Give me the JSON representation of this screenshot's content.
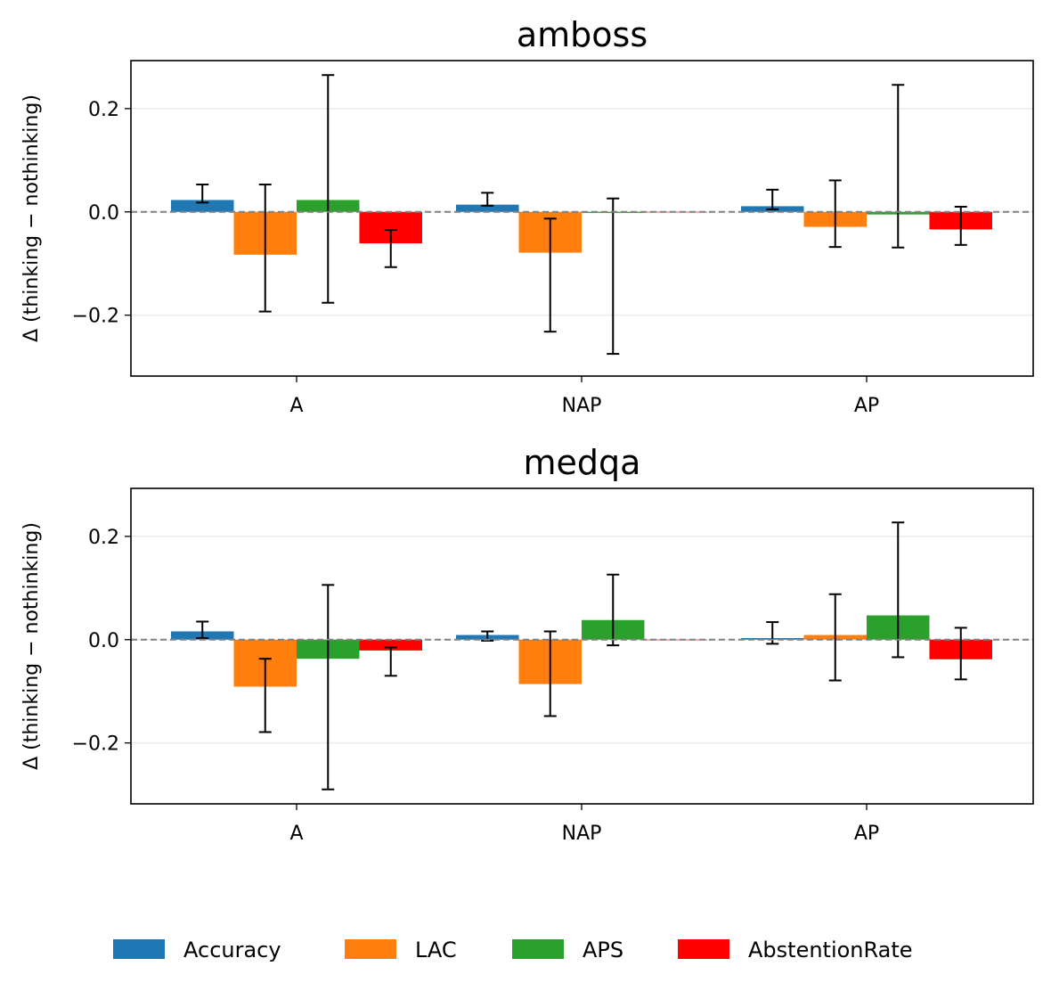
{
  "chart_data": [
    {
      "type": "bar",
      "title": "amboss",
      "xlabel": "",
      "ylabel": "Δ (thinking − nothinking)",
      "ylim": [
        -0.318,
        0.293
      ],
      "yticks": [
        -0.2,
        0.0,
        0.2
      ],
      "ytick_labels": [
        "−0.2",
        "0.0",
        "0.2"
      ],
      "categories": [
        "A",
        "NAP",
        "AP"
      ],
      "reference_line": 0.0,
      "grid": "y",
      "series": [
        {
          "name": "Accuracy",
          "values": [
            0.023,
            0.014,
            0.011
          ],
          "err_low": [
            0.018,
            0.012,
            0.005
          ],
          "err_high": [
            0.053,
            0.037,
            0.043
          ]
        },
        {
          "name": "LAC",
          "values": [
            -0.083,
            -0.079,
            -0.029
          ],
          "err_low": [
            -0.193,
            -0.232,
            -0.068
          ],
          "err_high": [
            0.053,
            -0.013,
            0.061
          ]
        },
        {
          "name": "APS",
          "values": [
            0.023,
            -0.002,
            -0.005
          ],
          "err_low": [
            -0.176,
            -0.275,
            -0.069
          ],
          "err_high": [
            0.265,
            0.026,
            0.246
          ]
        },
        {
          "name": "AbstentionRate",
          "values": [
            -0.061,
            0.0,
            -0.034
          ],
          "err_low": [
            -0.107,
            null,
            -0.064
          ],
          "err_high": [
            -0.035,
            null,
            0.01
          ]
        }
      ]
    },
    {
      "type": "bar",
      "title": "medqa",
      "xlabel": "",
      "ylabel": "Δ (thinking − nothinking)",
      "ylim": [
        -0.318,
        0.293
      ],
      "yticks": [
        -0.2,
        0.0,
        0.2
      ],
      "ytick_labels": [
        "−0.2",
        "0.0",
        "0.2"
      ],
      "categories": [
        "A",
        "NAP",
        "AP"
      ],
      "reference_line": 0.0,
      "grid": "y",
      "series": [
        {
          "name": "Accuracy",
          "values": [
            0.016,
            0.009,
            0.003
          ],
          "err_low": [
            0.003,
            -0.002,
            -0.008
          ],
          "err_high": [
            0.035,
            0.016,
            0.034
          ]
        },
        {
          "name": "LAC",
          "values": [
            -0.091,
            -0.086,
            0.009
          ],
          "err_low": [
            -0.179,
            -0.148,
            -0.079
          ],
          "err_high": [
            -0.037,
            0.016,
            0.088
          ]
        },
        {
          "name": "APS",
          "values": [
            -0.037,
            0.038,
            0.047
          ],
          "err_low": [
            -0.29,
            -0.011,
            -0.034
          ],
          "err_high": [
            0.106,
            0.126,
            0.227
          ]
        },
        {
          "name": "AbstentionRate",
          "values": [
            -0.021,
            0.0,
            -0.038
          ],
          "err_low": [
            -0.07,
            null,
            -0.077
          ],
          "err_high": [
            -0.015,
            null,
            0.023
          ]
        }
      ]
    }
  ],
  "legend": {
    "placement": "bottom-center",
    "entries": [
      {
        "label": "Accuracy",
        "color": "#1f77b4"
      },
      {
        "label": "LAC",
        "color": "#ff7f0e"
      },
      {
        "label": "APS",
        "color": "#2ca02c"
      },
      {
        "label": "AbstentionRate",
        "color": "#ff0000"
      }
    ]
  },
  "colors": {
    "Accuracy": "#1f77b4",
    "LAC": "#ff7f0e",
    "APS": "#2ca02c",
    "AbstentionRate": "#ff0000",
    "reference_line": "#808080",
    "grid": "#ebebeb",
    "errorbar": "#000000"
  }
}
